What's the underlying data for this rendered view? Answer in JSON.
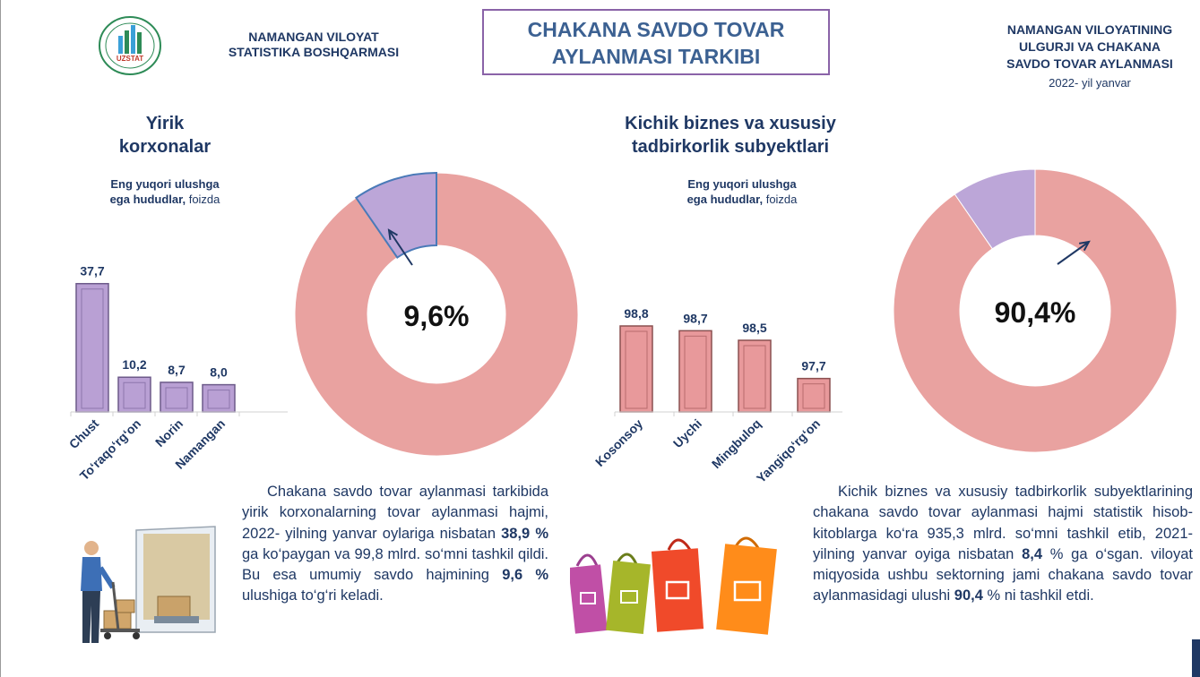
{
  "header": {
    "logo_text": "UZSTAT",
    "org_line1": "NAMANGAN VILOYAT",
    "org_line2": "STATISTIKA BOSHQARMASI",
    "title_line1": "CHAKANA SAVDO TOVAR",
    "title_line2": "AYLANMASI TARKIBI",
    "right_line1": "NAMANGAN VILOYATINING",
    "right_line2": "ULGURJI VA CHAKANA",
    "right_line3": "SAVDO TOVAR AYLANMASI",
    "right_date": "2022- yil yanvar"
  },
  "left_section": {
    "title_line1": "Yirik",
    "title_line2": "korxonalar",
    "subtitle_line1": "Eng yuqori ulushga",
    "subtitle_line2_bold": "ega hududlar,",
    "subtitle_line2_rest": " foizda",
    "para": {
      "t1": "Chakana savdo tovar aylanmasi tarkibida yirik korxonalarning tovar aylanmasi hajmi, 2022- yilning yanvar oylariga nisbatan ",
      "b1": "38,9 %",
      "t2": " ga ko‘paygan va 99,8 mlrd. so‘mni tashkil qildi. Bu esa umumiy savdo hajmining ",
      "b2": "9,6 %",
      "t3": " ulushiga to‘g‘ri keladi."
    }
  },
  "right_section": {
    "title_line1": "Kichik biznes va xususiy",
    "title_line2": "tadbirkorlik subyektlari",
    "subtitle_line1": "Eng yuqori ulushga",
    "subtitle_line2_bold": "ega hududlar,",
    "subtitle_line2_rest": " foizda",
    "para": {
      "t1": "Kichik biznes va xususiy tadbirkorlik subyektlarining chakana savdo tovar aylanmasi hajmi statistik hisob-kitoblarga ko‘ra 935,3 mlrd. so‘mni tashkil etib, 2021- yilning yanvar oyiga nisbatan ",
      "b1": "8,4",
      "t2": " % ga o‘sgan. viloyat miqyosida ushbu sektorning jami chakana savdo tovar aylanmasidagi ulushi ",
      "b2": "90,4",
      "t3": " % ni tashkil etdi."
    }
  },
  "colors": {
    "purple_bar": "#b9a0d4",
    "pink_bar": "#e8999b",
    "donut_pink": "#e9a2a0",
    "donut_purple": "#bca6d8",
    "navy": "#1f3864"
  },
  "chart_data": [
    {
      "type": "bar",
      "name": "yirik-korxonalar-regions",
      "categories": [
        "Chust",
        "To‘raqo‘rg‘on",
        "Norin",
        "Namangan"
      ],
      "values": [
        37.7,
        10.2,
        8.7,
        8.0
      ],
      "labels": [
        "37,7",
        "10,2",
        "8,7",
        "8,0"
      ],
      "title": "Eng yuqori ulushga ega hududlar, foizda",
      "ylim": [
        0,
        40
      ]
    },
    {
      "type": "pie",
      "name": "yirik-korxonalar-share",
      "slices": [
        {
          "name": "Yirik korxonalar",
          "value": 9.6
        },
        {
          "name": "Kichik biznes va xususiy tadbirkorlik",
          "value": 90.4
        }
      ],
      "center_label": "9,6%",
      "highlight": 0
    },
    {
      "type": "bar",
      "name": "kichik-biznes-regions",
      "categories": [
        "Kosonsoy",
        "Uychi",
        "Mingbuloq",
        "Yangiqo‘rg‘on"
      ],
      "values": [
        98.8,
        98.7,
        98.5,
        97.7
      ],
      "labels": [
        "98,8",
        "98,7",
        "98,5",
        "97,7"
      ],
      "title": "Eng yuqori ulushga ega hududlar, foizda",
      "ylim": [
        97,
        99.1
      ]
    },
    {
      "type": "pie",
      "name": "kichik-biznes-share",
      "slices": [
        {
          "name": "Yirik korxonalar",
          "value": 9.6
        },
        {
          "name": "Kichik biznes va xususiy tadbirkorlik",
          "value": 90.4
        }
      ],
      "center_label": "90,4%",
      "highlight": 1
    }
  ]
}
